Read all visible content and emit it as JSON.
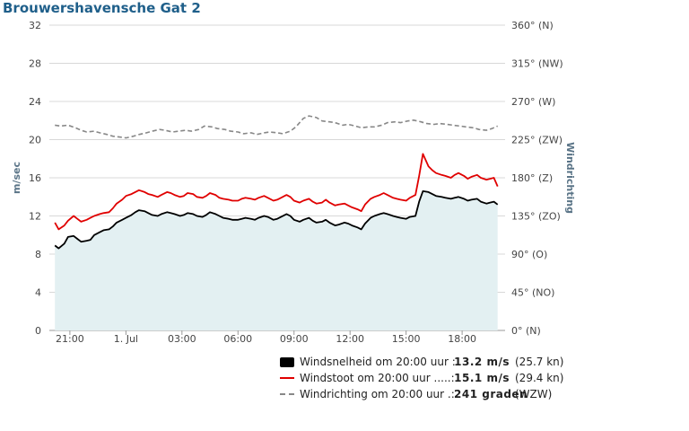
{
  "chart_data": {
    "type": "line",
    "title": "Brouwershavensche Gat 2",
    "ylabel": "m/sec",
    "y2label": "Windrichting",
    "ylim": [
      0,
      32
    ],
    "yticks": [
      "0",
      "4",
      "8",
      "12",
      "16",
      "20",
      "24",
      "28",
      "32"
    ],
    "y2lim": [
      0,
      360
    ],
    "y2ticks": [
      "0° (N)",
      "45° (NO)",
      "90° (O)",
      "135° (ZO)",
      "180° (Z)",
      "225° (ZW)",
      "270° (W)",
      "315° (NW)",
      "360° (N)"
    ],
    "xlim": [
      19.9,
      44.3
    ],
    "xticks": [
      {
        "x": 21,
        "label": "21:00"
      },
      {
        "x": 24,
        "label": "1. Jul"
      },
      {
        "x": 27,
        "label": "03:00"
      },
      {
        "x": 30,
        "label": "06:00"
      },
      {
        "x": 33,
        "label": "09:00"
      },
      {
        "x": 36,
        "label": "12:00"
      },
      {
        "x": 39,
        "label": "15:00"
      },
      {
        "x": 42,
        "label": "18:00"
      }
    ],
    "grid": true,
    "legend_position": "bottom-right",
    "series": [
      {
        "name": "Windsnelheid",
        "color": "#000000",
        "axis": "left",
        "fill": "#e3f0f2",
        "points": [
          [
            20.2,
            8.9
          ],
          [
            20.4,
            8.6
          ],
          [
            20.7,
            9.1
          ],
          [
            20.9,
            9.8
          ],
          [
            21.2,
            9.9
          ],
          [
            21.4,
            9.6
          ],
          [
            21.6,
            9.3
          ],
          [
            21.9,
            9.4
          ],
          [
            22.1,
            9.5
          ],
          [
            22.3,
            10.0
          ],
          [
            22.6,
            10.3
          ],
          [
            22.8,
            10.5
          ],
          [
            23.1,
            10.6
          ],
          [
            23.3,
            10.9
          ],
          [
            23.5,
            11.3
          ],
          [
            23.8,
            11.6
          ],
          [
            24.0,
            11.8
          ],
          [
            24.3,
            12.1
          ],
          [
            24.5,
            12.4
          ],
          [
            24.7,
            12.6
          ],
          [
            25.0,
            12.5
          ],
          [
            25.2,
            12.3
          ],
          [
            25.4,
            12.1
          ],
          [
            25.7,
            12.0
          ],
          [
            25.9,
            12.2
          ],
          [
            26.2,
            12.4
          ],
          [
            26.4,
            12.3
          ],
          [
            26.6,
            12.2
          ],
          [
            26.9,
            12.0
          ],
          [
            27.1,
            12.1
          ],
          [
            27.3,
            12.3
          ],
          [
            27.6,
            12.2
          ],
          [
            27.8,
            12.0
          ],
          [
            28.1,
            11.9
          ],
          [
            28.3,
            12.1
          ],
          [
            28.5,
            12.4
          ],
          [
            28.8,
            12.2
          ],
          [
            29.0,
            12.0
          ],
          [
            29.2,
            11.8
          ],
          [
            29.5,
            11.7
          ],
          [
            29.7,
            11.6
          ],
          [
            30.0,
            11.6
          ],
          [
            30.2,
            11.7
          ],
          [
            30.4,
            11.8
          ],
          [
            30.7,
            11.7
          ],
          [
            30.9,
            11.6
          ],
          [
            31.1,
            11.8
          ],
          [
            31.4,
            12.0
          ],
          [
            31.6,
            11.9
          ],
          [
            31.9,
            11.6
          ],
          [
            32.1,
            11.7
          ],
          [
            32.3,
            11.9
          ],
          [
            32.6,
            12.2
          ],
          [
            32.8,
            12.0
          ],
          [
            33.0,
            11.6
          ],
          [
            33.3,
            11.4
          ],
          [
            33.5,
            11.6
          ],
          [
            33.8,
            11.8
          ],
          [
            34.0,
            11.5
          ],
          [
            34.2,
            11.3
          ],
          [
            34.5,
            11.4
          ],
          [
            34.7,
            11.6
          ],
          [
            34.9,
            11.3
          ],
          [
            35.2,
            11.0
          ],
          [
            35.4,
            11.1
          ],
          [
            35.7,
            11.3
          ],
          [
            35.9,
            11.2
          ],
          [
            36.1,
            11.0
          ],
          [
            36.4,
            10.8
          ],
          [
            36.6,
            10.6
          ],
          [
            36.8,
            11.2
          ],
          [
            37.1,
            11.8
          ],
          [
            37.3,
            12.0
          ],
          [
            37.6,
            12.2
          ],
          [
            37.8,
            12.3
          ],
          [
            38.0,
            12.2
          ],
          [
            38.3,
            12.0
          ],
          [
            38.5,
            11.9
          ],
          [
            38.7,
            11.8
          ],
          [
            39.0,
            11.7
          ],
          [
            39.2,
            11.9
          ],
          [
            39.5,
            12.0
          ],
          [
            39.7,
            13.5
          ],
          [
            39.9,
            14.6
          ],
          [
            40.2,
            14.5
          ],
          [
            40.4,
            14.3
          ],
          [
            40.6,
            14.1
          ],
          [
            40.9,
            14.0
          ],
          [
            41.1,
            13.9
          ],
          [
            41.4,
            13.8
          ],
          [
            41.6,
            13.9
          ],
          [
            41.8,
            14.0
          ],
          [
            42.1,
            13.8
          ],
          [
            42.3,
            13.6
          ],
          [
            42.5,
            13.7
          ],
          [
            42.8,
            13.8
          ],
          [
            43.0,
            13.5
          ],
          [
            43.3,
            13.3
          ],
          [
            43.5,
            13.4
          ],
          [
            43.7,
            13.5
          ],
          [
            43.9,
            13.2
          ]
        ]
      },
      {
        "name": "Windstoot",
        "color": "#e00000",
        "axis": "left",
        "points": [
          [
            20.2,
            11.3
          ],
          [
            20.4,
            10.6
          ],
          [
            20.7,
            11.0
          ],
          [
            20.9,
            11.5
          ],
          [
            21.2,
            12.0
          ],
          [
            21.4,
            11.7
          ],
          [
            21.6,
            11.4
          ],
          [
            21.9,
            11.6
          ],
          [
            22.1,
            11.8
          ],
          [
            22.3,
            12.0
          ],
          [
            22.6,
            12.2
          ],
          [
            22.8,
            12.3
          ],
          [
            23.1,
            12.4
          ],
          [
            23.3,
            12.8
          ],
          [
            23.5,
            13.3
          ],
          [
            23.8,
            13.7
          ],
          [
            24.0,
            14.1
          ],
          [
            24.3,
            14.3
          ],
          [
            24.5,
            14.5
          ],
          [
            24.7,
            14.7
          ],
          [
            25.0,
            14.5
          ],
          [
            25.2,
            14.3
          ],
          [
            25.4,
            14.2
          ],
          [
            25.7,
            14.0
          ],
          [
            25.9,
            14.2
          ],
          [
            26.2,
            14.5
          ],
          [
            26.4,
            14.4
          ],
          [
            26.6,
            14.2
          ],
          [
            26.9,
            14.0
          ],
          [
            27.1,
            14.1
          ],
          [
            27.3,
            14.4
          ],
          [
            27.6,
            14.3
          ],
          [
            27.8,
            14.0
          ],
          [
            28.1,
            13.9
          ],
          [
            28.3,
            14.1
          ],
          [
            28.5,
            14.4
          ],
          [
            28.8,
            14.2
          ],
          [
            29.0,
            13.9
          ],
          [
            29.2,
            13.8
          ],
          [
            29.5,
            13.7
          ],
          [
            29.7,
            13.6
          ],
          [
            30.0,
            13.6
          ],
          [
            30.2,
            13.8
          ],
          [
            30.4,
            13.9
          ],
          [
            30.7,
            13.8
          ],
          [
            30.9,
            13.7
          ],
          [
            31.1,
            13.9
          ],
          [
            31.4,
            14.1
          ],
          [
            31.6,
            13.9
          ],
          [
            31.9,
            13.6
          ],
          [
            32.1,
            13.7
          ],
          [
            32.3,
            13.9
          ],
          [
            32.6,
            14.2
          ],
          [
            32.8,
            14.0
          ],
          [
            33.0,
            13.6
          ],
          [
            33.3,
            13.4
          ],
          [
            33.5,
            13.6
          ],
          [
            33.8,
            13.8
          ],
          [
            34.0,
            13.5
          ],
          [
            34.2,
            13.3
          ],
          [
            34.5,
            13.4
          ],
          [
            34.7,
            13.7
          ],
          [
            34.9,
            13.4
          ],
          [
            35.2,
            13.1
          ],
          [
            35.4,
            13.2
          ],
          [
            35.7,
            13.3
          ],
          [
            35.9,
            13.1
          ],
          [
            36.1,
            12.9
          ],
          [
            36.4,
            12.7
          ],
          [
            36.6,
            12.5
          ],
          [
            36.8,
            13.2
          ],
          [
            37.1,
            13.8
          ],
          [
            37.3,
            14.0
          ],
          [
            37.6,
            14.2
          ],
          [
            37.8,
            14.4
          ],
          [
            38.0,
            14.2
          ],
          [
            38.3,
            13.9
          ],
          [
            38.5,
            13.8
          ],
          [
            38.7,
            13.7
          ],
          [
            39.0,
            13.6
          ],
          [
            39.2,
            13.9
          ],
          [
            39.5,
            14.2
          ],
          [
            39.7,
            16.2
          ],
          [
            39.9,
            18.5
          ],
          [
            40.2,
            17.2
          ],
          [
            40.4,
            16.8
          ],
          [
            40.6,
            16.5
          ],
          [
            40.9,
            16.3
          ],
          [
            41.1,
            16.2
          ],
          [
            41.4,
            16.0
          ],
          [
            41.6,
            16.3
          ],
          [
            41.8,
            16.5
          ],
          [
            42.1,
            16.2
          ],
          [
            42.3,
            15.9
          ],
          [
            42.5,
            16.1
          ],
          [
            42.8,
            16.3
          ],
          [
            43.0,
            16.0
          ],
          [
            43.3,
            15.8
          ],
          [
            43.5,
            15.9
          ],
          [
            43.7,
            16.0
          ],
          [
            43.9,
            15.1
          ]
        ]
      },
      {
        "name": "Windrichting",
        "color": "#888888",
        "axis": "right",
        "dashed": true,
        "points": [
          [
            20.2,
            242
          ],
          [
            20.5,
            241
          ],
          [
            20.9,
            242
          ],
          [
            21.3,
            239
          ],
          [
            21.6,
            236
          ],
          [
            21.9,
            234
          ],
          [
            22.3,
            235
          ],
          [
            22.6,
            233
          ],
          [
            23.0,
            231
          ],
          [
            23.3,
            229
          ],
          [
            23.7,
            228
          ],
          [
            24.0,
            227
          ],
          [
            24.4,
            229
          ],
          [
            24.7,
            231
          ],
          [
            25.1,
            233
          ],
          [
            25.4,
            235
          ],
          [
            25.8,
            237
          ],
          [
            26.1,
            236
          ],
          [
            26.5,
            234
          ],
          [
            26.8,
            235
          ],
          [
            27.2,
            236
          ],
          [
            27.5,
            235
          ],
          [
            27.9,
            237
          ],
          [
            28.2,
            241
          ],
          [
            28.6,
            240
          ],
          [
            28.9,
            238
          ],
          [
            29.3,
            237
          ],
          [
            29.6,
            235
          ],
          [
            30.0,
            234
          ],
          [
            30.3,
            232
          ],
          [
            30.7,
            233
          ],
          [
            31.0,
            231
          ],
          [
            31.4,
            233
          ],
          [
            31.7,
            234
          ],
          [
            32.1,
            233
          ],
          [
            32.4,
            232
          ],
          [
            32.8,
            235
          ],
          [
            33.1,
            240
          ],
          [
            33.5,
            250
          ],
          [
            33.8,
            253
          ],
          [
            34.2,
            251
          ],
          [
            34.5,
            247
          ],
          [
            34.9,
            246
          ],
          [
            35.2,
            245
          ],
          [
            35.6,
            242
          ],
          [
            35.9,
            243
          ],
          [
            36.3,
            241
          ],
          [
            36.6,
            239
          ],
          [
            37.0,
            240
          ],
          [
            37.3,
            240
          ],
          [
            37.7,
            242
          ],
          [
            38.0,
            245
          ],
          [
            38.4,
            246
          ],
          [
            38.7,
            245
          ],
          [
            39.1,
            247
          ],
          [
            39.4,
            248
          ],
          [
            39.8,
            246
          ],
          [
            40.1,
            244
          ],
          [
            40.5,
            243
          ],
          [
            40.8,
            244
          ],
          [
            41.2,
            243
          ],
          [
            41.5,
            242
          ],
          [
            41.9,
            241
          ],
          [
            42.2,
            240
          ],
          [
            42.6,
            239
          ],
          [
            42.9,
            237
          ],
          [
            43.3,
            236
          ],
          [
            43.6,
            238
          ],
          [
            43.9,
            241
          ]
        ]
      }
    ]
  },
  "legend": [
    {
      "name": "Windsnelheid om 20:00 uur :",
      "value": "13.2 m/s",
      "extra": "(25.7 kn)",
      "style": "box",
      "color": "#000000"
    },
    {
      "name": "Windstoot om 20:00 uur .....:",
      "value": "15.1 m/s",
      "extra": "(29.4 kn)",
      "style": "line",
      "color": "#e00000"
    },
    {
      "name": "Windrichting om 20:00 uur .:",
      "value": "241 graden",
      "extra": "(WZW)",
      "style": "dash",
      "color": "#888888"
    }
  ]
}
